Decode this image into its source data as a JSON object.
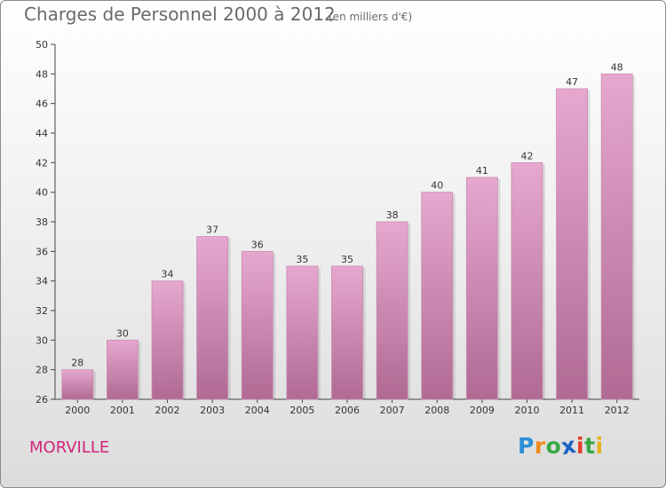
{
  "chart_data": {
    "type": "bar",
    "title": "Charges de Personnel 2000 à 2012",
    "subtitle": "(en milliers d'€)",
    "categories": [
      "2000",
      "2001",
      "2002",
      "2003",
      "2004",
      "2005",
      "2006",
      "2007",
      "2008",
      "2009",
      "2010",
      "2011",
      "2012"
    ],
    "values": [
      28,
      30,
      34,
      37,
      36,
      35,
      35,
      38,
      40,
      41,
      42,
      47,
      48
    ],
    "ylim": [
      26,
      50
    ],
    "yticks": [
      26,
      28,
      30,
      32,
      34,
      36,
      38,
      40,
      42,
      44,
      46,
      48,
      50
    ],
    "grid": false,
    "bar_color_top": "#e6a8cf",
    "bar_color_bottom": "#b06a93"
  },
  "footer": {
    "place": "MORVILLE",
    "brand_letters": [
      "P",
      "r",
      "o",
      "x",
      "i",
      "t",
      "i"
    ],
    "brand_colors": [
      "#2a8fd6",
      "#f08a1c",
      "#39a845",
      "#1b63c6",
      "#e63b2e",
      "#39a845",
      "#e6b21c"
    ]
  },
  "colors": {
    "place": "#d0247a"
  }
}
